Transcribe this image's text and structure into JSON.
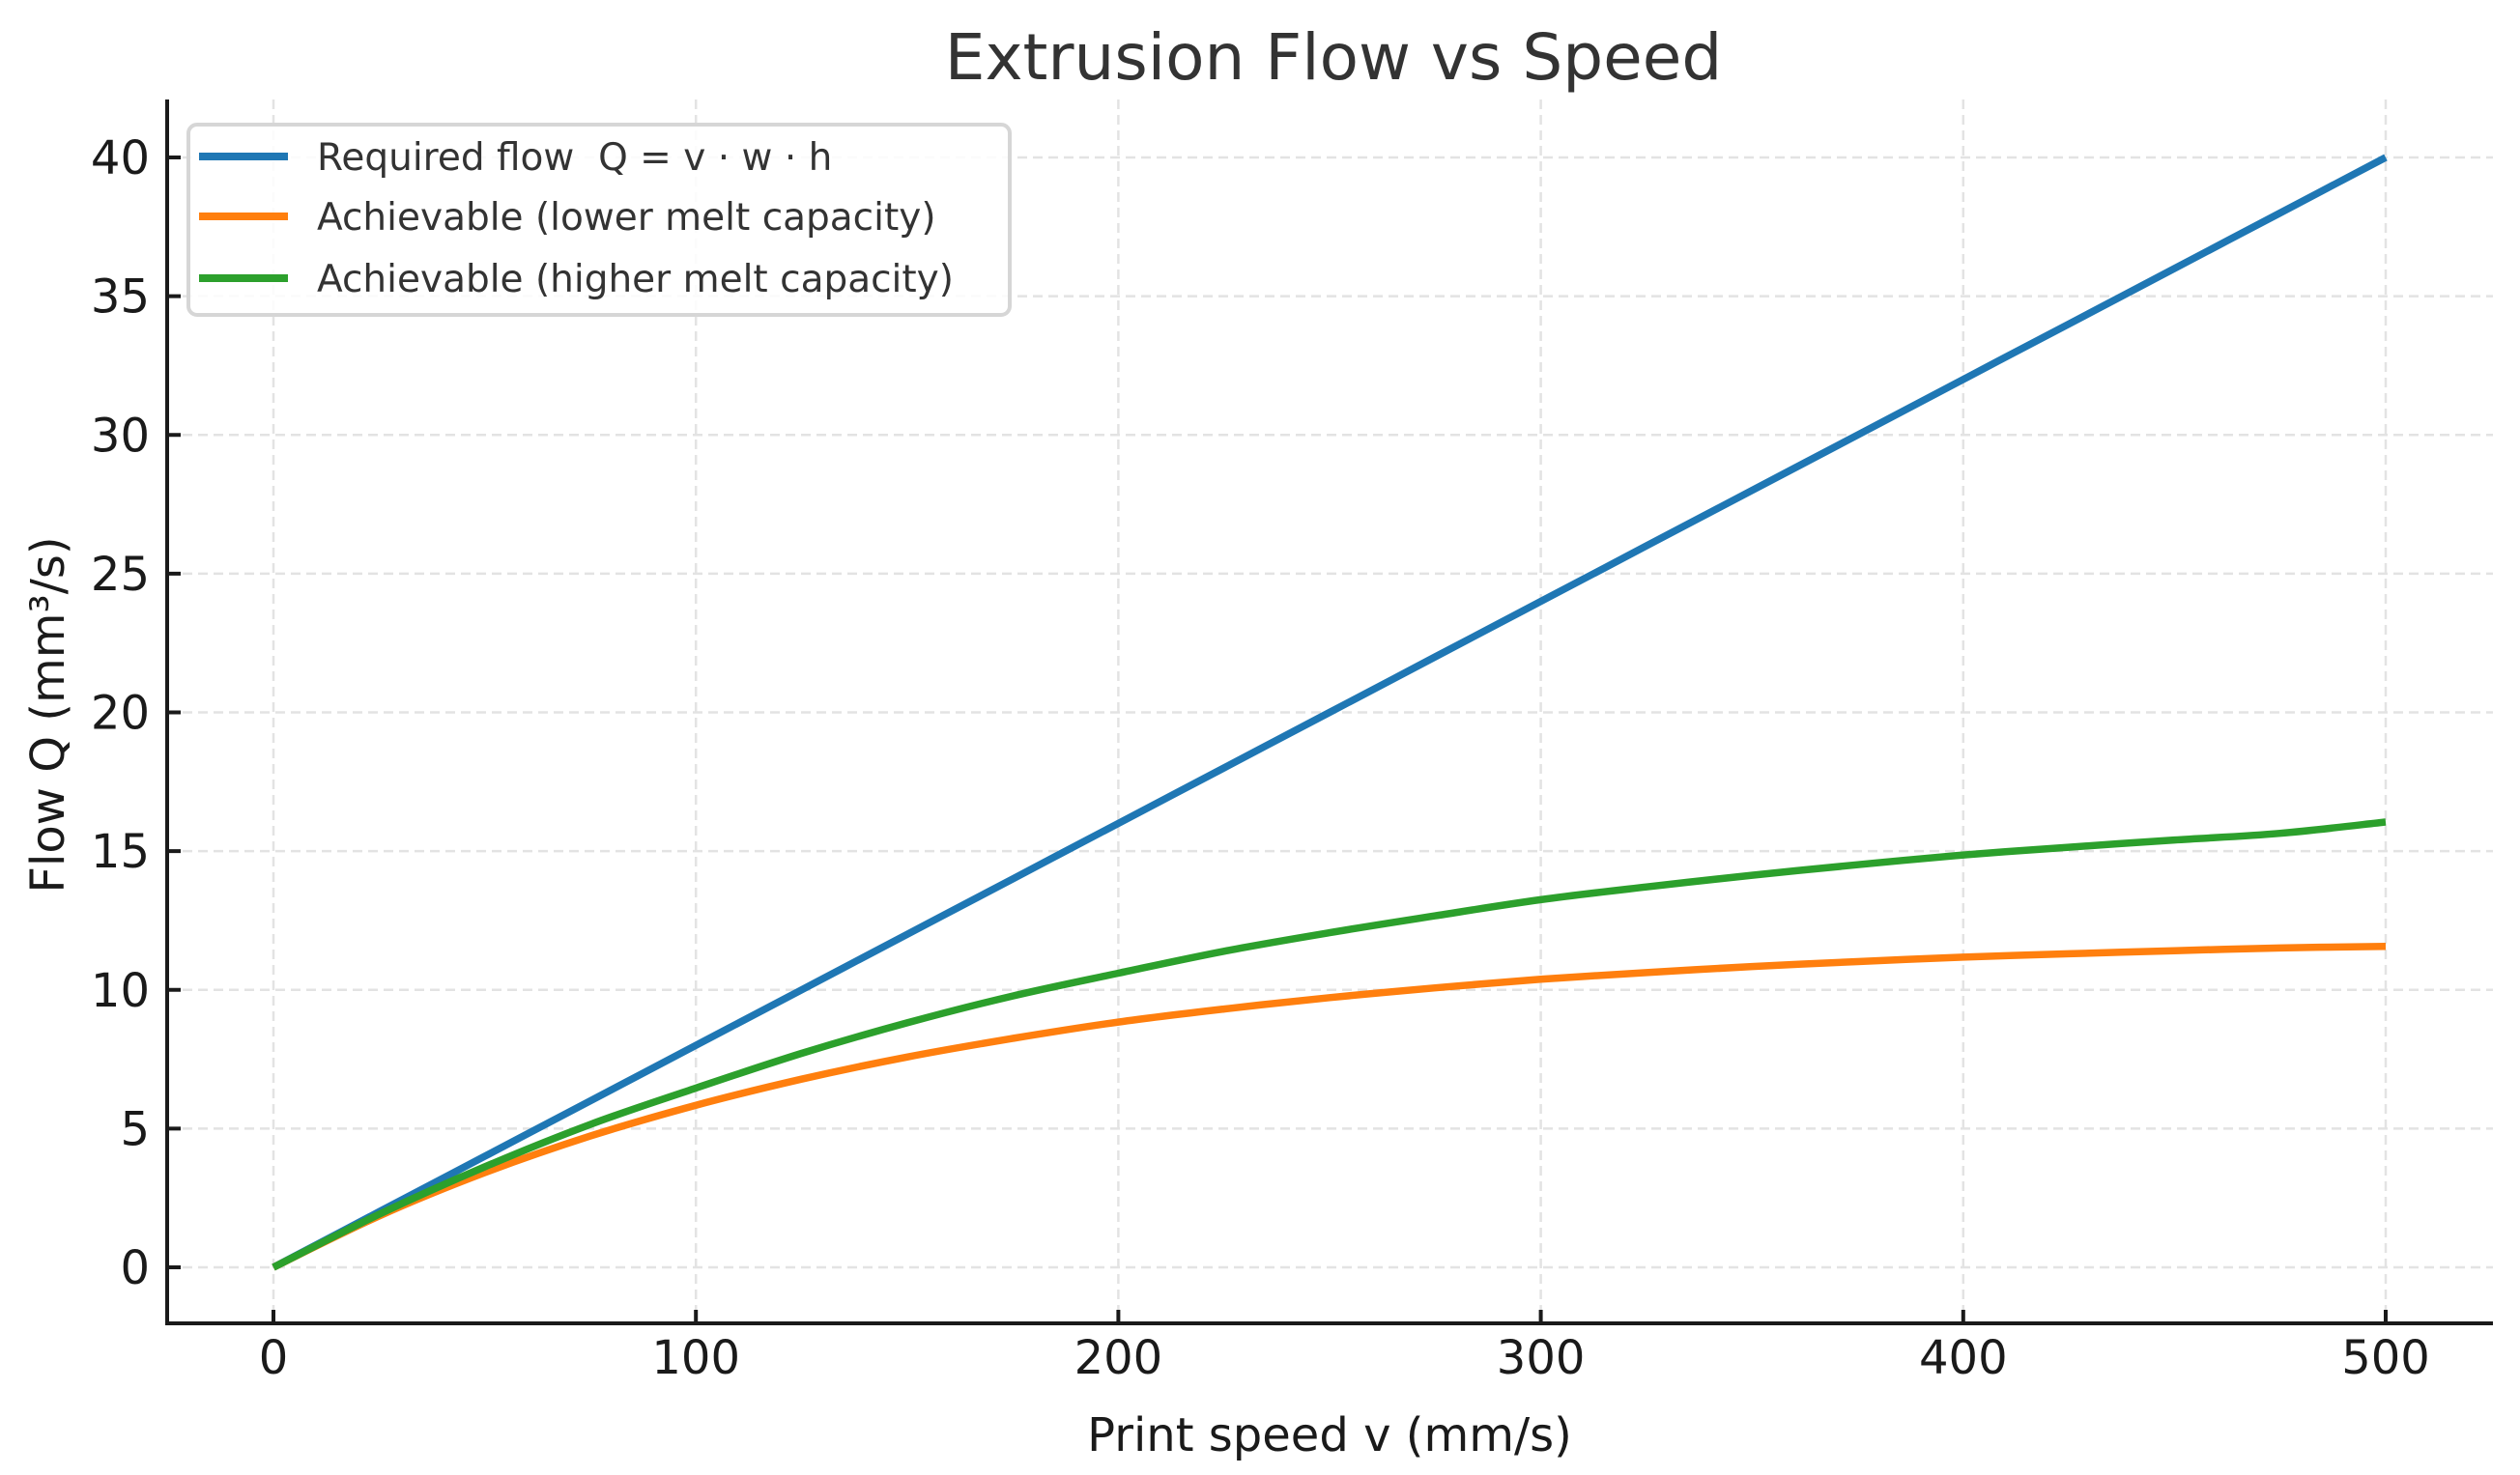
{
  "chart_data": {
    "type": "line",
    "title": "Extrusion Flow vs Speed",
    "xlabel": "Print speed  v (mm/s)",
    "ylabel": "Flow  Q (mm³/s)",
    "xlim": [
      -25,
      525
    ],
    "ylim": [
      -2,
      42
    ],
    "xticks": [
      0,
      100,
      200,
      300,
      400,
      500
    ],
    "xtick_labels": [
      "0",
      "100",
      "200",
      "300",
      "400",
      "500"
    ],
    "yticks": [
      0,
      5,
      10,
      15,
      20,
      25,
      30,
      35,
      40
    ],
    "ytick_labels": [
      "0",
      "5",
      "10",
      "15",
      "20",
      "25",
      "30",
      "35",
      "40"
    ],
    "grid": true,
    "legend_position": "top-left",
    "x": [
      0,
      25,
      50,
      75,
      100,
      125,
      150,
      175,
      200,
      225,
      250,
      275,
      300,
      325,
      350,
      375,
      400,
      425,
      450,
      475,
      500
    ],
    "series": [
      {
        "name": "Required flow  Q = v · w · h",
        "color": "#1f77b4",
        "values": [
          0,
          2,
          4,
          6,
          8,
          10,
          12,
          14,
          16,
          18,
          20,
          22,
          24,
          26,
          28,
          30,
          32,
          34,
          36,
          38,
          40
        ]
      },
      {
        "name": "Achievable (lower melt capacity)",
        "color": "#ff7f0e",
        "values": [
          0,
          1.85,
          3.41,
          4.73,
          5.84,
          6.78,
          7.58,
          8.25,
          8.84,
          9.31,
          9.72,
          10.07,
          10.38,
          10.62,
          10.84,
          11.02,
          11.18,
          11.3,
          11.41,
          11.51,
          11.57
        ]
      },
      {
        "name": "Achievable (higher melt capacity)",
        "color": "#2ca02c",
        "values": [
          0,
          1.91,
          3.62,
          5.15,
          6.46,
          7.71,
          8.81,
          9.78,
          10.6,
          11.39,
          12.06,
          12.67,
          13.25,
          13.71,
          14.13,
          14.51,
          14.86,
          15.14,
          15.4,
          15.64,
          16.05
        ]
      }
    ]
  }
}
